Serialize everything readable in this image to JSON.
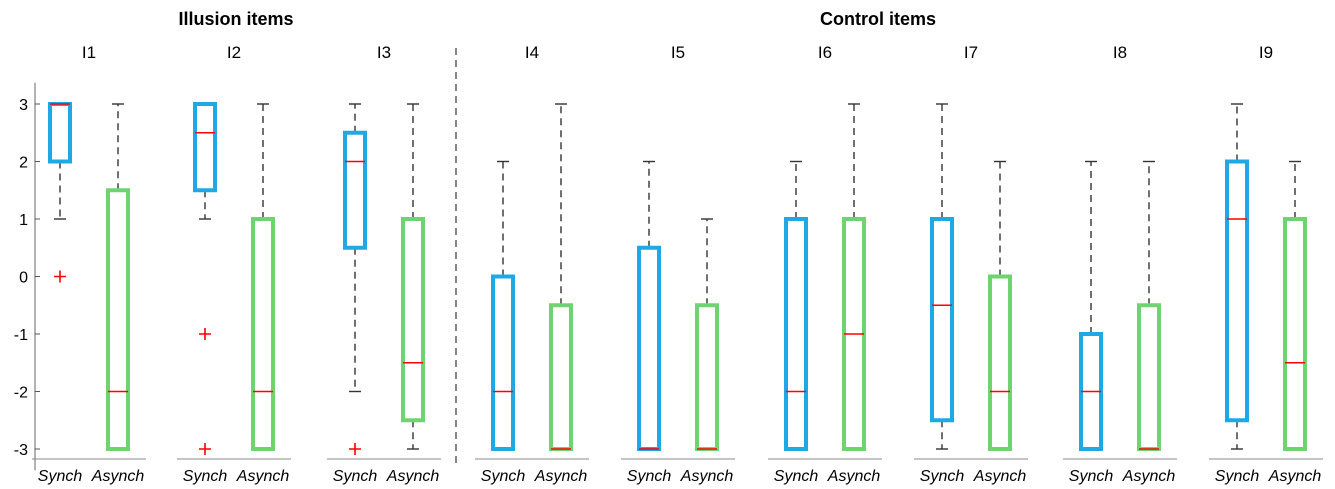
{
  "chart_data": {
    "type": "box",
    "groups": [
      {
        "title": "Illusion items",
        "panels": [
          "I1",
          "I2",
          "I3"
        ]
      },
      {
        "title": "Control items",
        "panels": [
          "I4",
          "I5",
          "I6",
          "I7",
          "I8",
          "I9"
        ]
      }
    ],
    "categories": [
      "Synch",
      "Asynch"
    ],
    "colors": {
      "Synch": "#1fa8e6",
      "Asynch": "#6fd46f",
      "median": "#ff0000",
      "outlier": "#ff0000",
      "whisker": "#333333"
    },
    "yticks": [
      3,
      2,
      1,
      0,
      -1,
      -2,
      -3
    ],
    "ylim": [
      -3.3,
      3.3
    ],
    "panels": [
      {
        "title": "I1",
        "Synch": {
          "q1": 2,
          "median": 3,
          "q3": 3,
          "low": 1,
          "high": 3,
          "outliers": [
            0
          ]
        },
        "Asynch": {
          "q1": -3,
          "median": -2,
          "q3": 1.5,
          "low": -3,
          "high": 3,
          "outliers": []
        }
      },
      {
        "title": "I2",
        "Synch": {
          "q1": 1.5,
          "median": 2.5,
          "q3": 3,
          "low": 1,
          "high": 3,
          "outliers": [
            -1,
            -3
          ]
        },
        "Asynch": {
          "q1": -3,
          "median": -2,
          "q3": 1,
          "low": -3,
          "high": 3,
          "outliers": []
        }
      },
      {
        "title": "I3",
        "Synch": {
          "q1": 0.5,
          "median": 2,
          "q3": 2.5,
          "low": -2,
          "high": 3,
          "outliers": [
            -3
          ]
        },
        "Asynch": {
          "q1": -2.5,
          "median": -1.5,
          "q3": 1,
          "low": -3,
          "high": 3,
          "outliers": []
        }
      },
      {
        "title": "I4",
        "Synch": {
          "q1": -3,
          "median": -2,
          "q3": 0,
          "low": -3,
          "high": 2,
          "outliers": []
        },
        "Asynch": {
          "q1": -3,
          "median": -3,
          "q3": -0.5,
          "low": -3,
          "high": 3,
          "outliers": []
        }
      },
      {
        "title": "I5",
        "Synch": {
          "q1": -3,
          "median": -3,
          "q3": 0.5,
          "low": -3,
          "high": 2,
          "outliers": []
        },
        "Asynch": {
          "q1": -3,
          "median": -3,
          "q3": -0.5,
          "low": -3,
          "high": 1,
          "outliers": []
        }
      },
      {
        "title": "I6",
        "Synch": {
          "q1": -3,
          "median": -2,
          "q3": 1,
          "low": -3,
          "high": 2,
          "outliers": []
        },
        "Asynch": {
          "q1": -3,
          "median": -1,
          "q3": 1,
          "low": -3,
          "high": 3,
          "outliers": []
        }
      },
      {
        "title": "I7",
        "Synch": {
          "q1": -2.5,
          "median": -0.5,
          "q3": 1,
          "low": -3,
          "high": 3,
          "outliers": []
        },
        "Asynch": {
          "q1": -3,
          "median": -2,
          "q3": 0,
          "low": -3,
          "high": 2,
          "outliers": []
        }
      },
      {
        "title": "I8",
        "Synch": {
          "q1": -3,
          "median": -2,
          "q3": -1,
          "low": -3,
          "high": 2,
          "outliers": []
        },
        "Asynch": {
          "q1": -3,
          "median": -3,
          "q3": -0.5,
          "low": -3,
          "high": 2,
          "outliers": []
        }
      },
      {
        "title": "I9",
        "Synch": {
          "q1": -2.5,
          "median": 1,
          "q3": 2,
          "low": -3,
          "high": 3,
          "outliers": []
        },
        "Asynch": {
          "q1": -3,
          "median": -1.5,
          "q3": 1,
          "low": -3,
          "high": 2,
          "outliers": []
        }
      }
    ]
  }
}
